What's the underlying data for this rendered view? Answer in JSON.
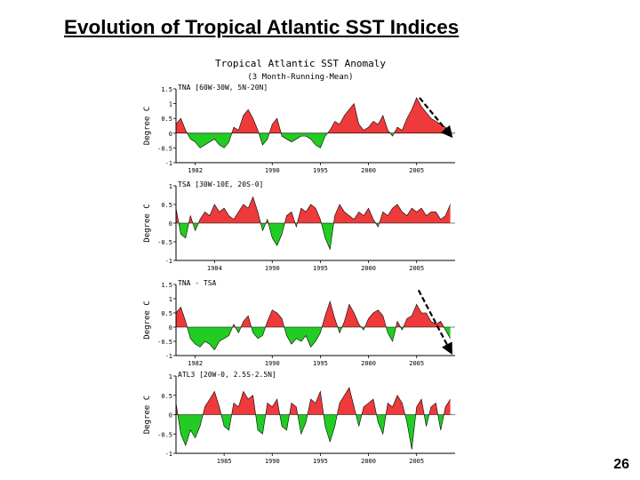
{
  "slide": {
    "title": "Evolution of Tropical Atlantic SST Indices",
    "page_number": "26"
  },
  "figure": {
    "title": "Tropical Atlantic SST Anomaly",
    "subtitle": "(3 Month-Running-Mean)"
  },
  "colors": {
    "positive": "#ee3a3a",
    "negative": "#22cc22",
    "line": "#000000",
    "arrow": "#000000"
  },
  "chart_data": [
    {
      "type": "area",
      "label": "TNA [60W-30W, 5N-20N]",
      "ylabel": "Degree C",
      "ylim": [
        -1,
        1.5
      ],
      "yticks": [
        -1,
        -0.5,
        0,
        0.5,
        1,
        1.5
      ],
      "ytick_labels": [
        "-1",
        "-0.5",
        "0",
        "0.5",
        "1",
        "1.5"
      ],
      "xlim": [
        1980,
        2009
      ],
      "xticks": [
        1982,
        1990,
        1995,
        2000,
        2005
      ],
      "xtick_labels": [
        "1982",
        "1990",
        "1995",
        "2000",
        "2005"
      ],
      "trend_arrow": {
        "from": [
          2005.3,
          1.2
        ],
        "to": [
          2008.6,
          -0.1
        ]
      },
      "x": [
        1980.0,
        1980.5,
        1981.0,
        1981.5,
        1982.0,
        1982.5,
        1983.0,
        1983.5,
        1984.0,
        1984.5,
        1985.0,
        1985.5,
        1986.0,
        1986.5,
        1987.0,
        1987.5,
        1988.0,
        1988.5,
        1989.0,
        1989.5,
        1990.0,
        1990.5,
        1991.0,
        1991.5,
        1992.0,
        1992.5,
        1993.0,
        1993.5,
        1994.0,
        1994.5,
        1995.0,
        1995.5,
        1996.0,
        1996.5,
        1997.0,
        1997.5,
        1998.0,
        1998.5,
        1999.0,
        1999.5,
        2000.0,
        2000.5,
        2001.0,
        2001.5,
        2002.0,
        2002.5,
        2003.0,
        2003.5,
        2004.0,
        2004.5,
        2005.0,
        2005.5,
        2006.0,
        2006.5,
        2007.0,
        2007.5,
        2008.0,
        2008.5
      ],
      "values": [
        0.3,
        0.5,
        0.1,
        -0.2,
        -0.3,
        -0.5,
        -0.4,
        -0.3,
        -0.2,
        -0.4,
        -0.5,
        -0.3,
        0.2,
        0.1,
        0.6,
        0.8,
        0.5,
        0.1,
        -0.4,
        -0.2,
        0.3,
        0.5,
        -0.1,
        -0.2,
        -0.3,
        -0.2,
        -0.1,
        -0.1,
        -0.2,
        -0.4,
        -0.5,
        -0.1,
        0.1,
        0.4,
        0.3,
        0.6,
        0.8,
        1.0,
        0.3,
        0.1,
        0.2,
        0.4,
        0.3,
        0.6,
        0.1,
        -0.1,
        0.2,
        0.1,
        0.5,
        0.8,
        1.2,
        0.9,
        0.7,
        0.5,
        0.4,
        0.3,
        0.2,
        0.1
      ]
    },
    {
      "type": "area",
      "label": "TSA [30W-10E, 20S-0]",
      "ylabel": "Degree C",
      "ylim": [
        -1,
        1
      ],
      "yticks": [
        -1,
        -0.5,
        0,
        0.5,
        1
      ],
      "ytick_labels": [
        "-1",
        "-0.5",
        "0",
        "0.5",
        "1"
      ],
      "xlim": [
        1980,
        2009
      ],
      "xticks": [
        1984,
        1990,
        1995,
        2000,
        2005
      ],
      "xtick_labels": [
        "1984",
        "1990",
        "1995",
        "2000",
        "2005"
      ],
      "x": [
        1980.0,
        1980.5,
        1981.0,
        1981.5,
        1982.0,
        1982.5,
        1983.0,
        1983.5,
        1984.0,
        1984.5,
        1985.0,
        1985.5,
        1986.0,
        1986.5,
        1987.0,
        1987.5,
        1988.0,
        1988.5,
        1989.0,
        1989.5,
        1990.0,
        1990.5,
        1991.0,
        1991.5,
        1992.0,
        1992.5,
        1993.0,
        1993.5,
        1994.0,
        1994.5,
        1995.0,
        1995.5,
        1996.0,
        1996.5,
        1997.0,
        1997.5,
        1998.0,
        1998.5,
        1999.0,
        1999.5,
        2000.0,
        2000.5,
        2001.0,
        2001.5,
        2002.0,
        2002.5,
        2003.0,
        2003.5,
        2004.0,
        2004.5,
        2005.0,
        2005.5,
        2006.0,
        2006.5,
        2007.0,
        2007.5,
        2008.0,
        2008.5
      ],
      "values": [
        0.4,
        -0.3,
        -0.4,
        0.2,
        -0.2,
        0.1,
        0.3,
        0.2,
        0.5,
        0.3,
        0.4,
        0.2,
        0.1,
        0.3,
        0.5,
        0.4,
        0.7,
        0.3,
        -0.2,
        0.1,
        -0.4,
        -0.6,
        -0.3,
        0.2,
        0.3,
        -0.1,
        0.4,
        0.3,
        0.5,
        0.4,
        0.1,
        -0.4,
        -0.7,
        0.2,
        0.5,
        0.3,
        0.2,
        0.1,
        0.3,
        0.2,
        0.4,
        0.1,
        -0.1,
        0.3,
        0.2,
        0.4,
        0.5,
        0.3,
        0.2,
        0.4,
        0.3,
        0.4,
        0.2,
        0.3,
        0.3,
        0.1,
        0.2,
        0.5
      ]
    },
    {
      "type": "area",
      "label": "TNA - TSA",
      "ylabel": "Degree C",
      "ylim": [
        -1,
        1.5
      ],
      "yticks": [
        -1,
        -0.5,
        0,
        0.5,
        1,
        1.5
      ],
      "ytick_labels": [
        "-1",
        "-0.5",
        "0",
        "0.5",
        "1",
        "1.5"
      ],
      "xlim": [
        1980,
        2009
      ],
      "xticks": [
        1982,
        1990,
        1995,
        2000,
        2005
      ],
      "xtick_labels": [
        "1982",
        "1990",
        "1995",
        "2000",
        "2005"
      ],
      "trend_arrow": {
        "from": [
          2005.2,
          1.3
        ],
        "to": [
          2008.6,
          -0.9
        ]
      },
      "x": [
        1980.0,
        1980.5,
        1981.0,
        1981.5,
        1982.0,
        1982.5,
        1983.0,
        1983.5,
        1984.0,
        1984.5,
        1985.0,
        1985.5,
        1986.0,
        1986.5,
        1987.0,
        1987.5,
        1988.0,
        1988.5,
        1989.0,
        1989.5,
        1990.0,
        1990.5,
        1991.0,
        1991.5,
        1992.0,
        1992.5,
        1993.0,
        1993.5,
        1994.0,
        1994.5,
        1995.0,
        1995.5,
        1996.0,
        1996.5,
        1997.0,
        1997.5,
        1998.0,
        1998.5,
        1999.0,
        1999.5,
        2000.0,
        2000.5,
        2001.0,
        2001.5,
        2002.0,
        2002.5,
        2003.0,
        2003.5,
        2004.0,
        2004.5,
        2005.0,
        2005.5,
        2006.0,
        2006.5,
        2007.0,
        2007.5,
        2008.0,
        2008.5
      ],
      "values": [
        0.5,
        0.7,
        0.2,
        -0.4,
        -0.6,
        -0.7,
        -0.5,
        -0.6,
        -0.8,
        -0.5,
        -0.4,
        -0.3,
        0.1,
        -0.2,
        0.2,
        0.4,
        -0.2,
        -0.4,
        -0.3,
        0.2,
        0.6,
        0.5,
        0.3,
        -0.3,
        -0.6,
        -0.4,
        -0.5,
        -0.3,
        -0.7,
        -0.5,
        -0.2,
        0.4,
        0.9,
        0.3,
        -0.2,
        0.2,
        0.8,
        0.5,
        0.1,
        -0.1,
        0.3,
        0.5,
        0.6,
        0.4,
        -0.2,
        -0.5,
        0.2,
        -0.1,
        0.3,
        0.4,
        0.8,
        0.5,
        0.5,
        0.2,
        0.1,
        0.2,
        -0.1,
        -0.4
      ]
    },
    {
      "type": "area",
      "label": "ATL3 [20W-0, 2.5S-2.5N]",
      "ylabel": "Degree C",
      "ylim": [
        -1,
        1
      ],
      "yticks": [
        -1,
        -0.5,
        0,
        0.5,
        1
      ],
      "ytick_labels": [
        "-1",
        "-0.5",
        "0",
        "0.5",
        "1"
      ],
      "xlim": [
        1980,
        2009
      ],
      "xticks": [
        1985,
        1990,
        1995,
        2000,
        2005
      ],
      "xtick_labels": [
        "1985",
        "1990",
        "1995",
        "2000",
        "2005"
      ],
      "x": [
        1980.0,
        1980.5,
        1981.0,
        1981.5,
        1982.0,
        1982.5,
        1983.0,
        1983.5,
        1984.0,
        1984.5,
        1985.0,
        1985.5,
        1986.0,
        1986.5,
        1987.0,
        1987.5,
        1988.0,
        1988.5,
        1989.0,
        1989.5,
        1990.0,
        1990.5,
        1991.0,
        1991.5,
        1992.0,
        1992.5,
        1993.0,
        1993.5,
        1994.0,
        1994.5,
        1995.0,
        1995.5,
        1996.0,
        1996.5,
        1997.0,
        1997.5,
        1998.0,
        1998.5,
        1999.0,
        1999.5,
        2000.0,
        2000.5,
        2001.0,
        2001.5,
        2002.0,
        2002.5,
        2003.0,
        2003.5,
        2004.0,
        2004.5,
        2005.0,
        2005.5,
        2006.0,
        2006.5,
        2007.0,
        2007.5,
        2008.0,
        2008.5
      ],
      "values": [
        0.3,
        -0.5,
        -0.8,
        -0.4,
        -0.6,
        -0.3,
        0.2,
        0.4,
        0.6,
        0.2,
        -0.3,
        -0.4,
        0.3,
        0.2,
        0.6,
        0.4,
        0.5,
        -0.4,
        -0.5,
        0.3,
        0.2,
        0.4,
        -0.3,
        -0.4,
        0.3,
        0.2,
        -0.5,
        -0.2,
        0.4,
        0.3,
        0.6,
        -0.3,
        -0.7,
        -0.3,
        0.3,
        0.5,
        0.7,
        0.2,
        -0.3,
        0.2,
        0.3,
        0.4,
        -0.2,
        -0.5,
        0.3,
        0.2,
        0.5,
        0.3,
        -0.2,
        -0.9,
        0.2,
        0.4,
        -0.3,
        0.2,
        0.3,
        -0.4,
        0.2,
        0.4
      ]
    }
  ]
}
